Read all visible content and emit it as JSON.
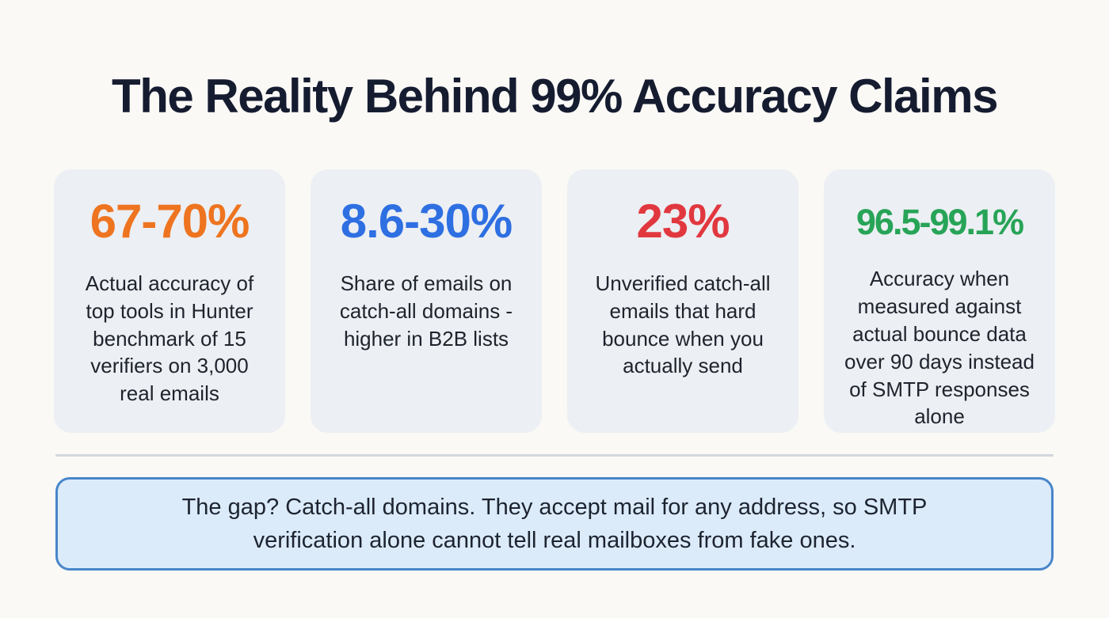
{
  "page": {
    "background_color": "#faf9f6"
  },
  "header": {
    "title": "The Reality Behind 99% Accuracy Claims",
    "title_color": "#161c30"
  },
  "stats": [
    {
      "value": "67-70%",
      "color": "#ee7420",
      "description": "Actual accuracy of top tools in Hunter benchmark of 15 verifiers on 3,000 real emails"
    },
    {
      "value": "8.6-30%",
      "color": "#2e6fe2",
      "description": "Share of emails on catch-all domains - higher in B2B lists"
    },
    {
      "value": "23%",
      "color": "#e1383f",
      "description": "Unverified catch-all emails that hard bounce when you actually send"
    },
    {
      "value": "96.5-99.1%",
      "color": "#27a457",
      "description": "Accuracy when measured against actual bounce data over 90 days instead of SMTP responses alone"
    }
  ],
  "callout": {
    "text": "The gap? Catch-all domains. They accept mail for any address, so SMTP verification alone cannot tell real mailboxes from fake ones.",
    "background": "#dcebfa",
    "border_color": "#4886ca"
  },
  "chart_data": {
    "type": "table",
    "title": "The Reality Behind 99% Accuracy Claims",
    "columns": [
      "statistic",
      "description"
    ],
    "rows": [
      [
        "67-70%",
        "Actual accuracy of top tools in Hunter benchmark of 15 verifiers on 3,000 real emails"
      ],
      [
        "8.6-30%",
        "Share of emails on catch-all domains - higher in B2B lists"
      ],
      [
        "23%",
        "Unverified catch-all emails that hard bounce when you actually send"
      ],
      [
        "96.5-99.1%",
        "Accuracy when measured against actual bounce data over 90 days instead of SMTP responses alone"
      ]
    ],
    "annotations": [
      "The gap? Catch-all domains. They accept mail for any address, so SMTP verification alone cannot tell real mailboxes from fake ones."
    ],
    "legend": "none",
    "grid": "off"
  }
}
